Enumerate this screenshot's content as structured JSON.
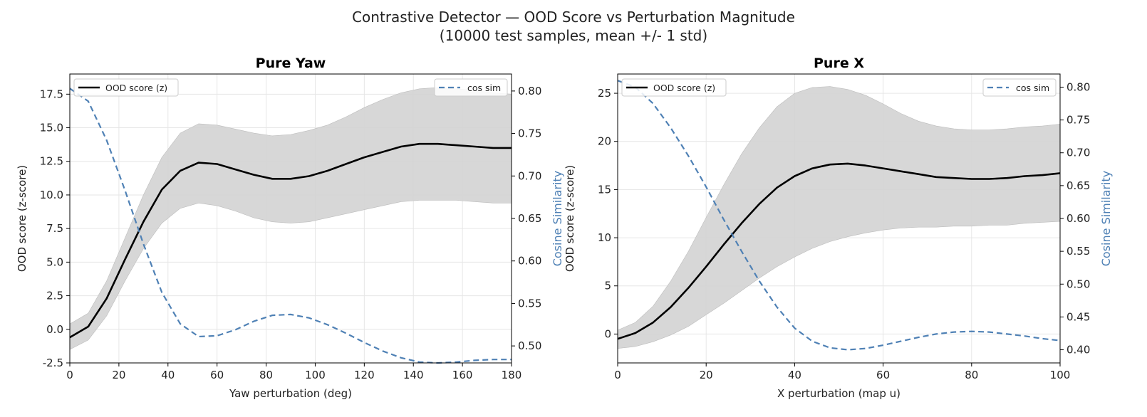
{
  "figure": {
    "title_line1": "Contrastive Detector — OOD Score vs Perturbation Magnitude",
    "title_line2": "(10000 test samples, mean +/- 1 std)"
  },
  "colors": {
    "mean": "#000000",
    "band": "#d3d3d3",
    "cos": "#4f81b5",
    "grid": "#e6e6e6"
  },
  "chart_data": [
    {
      "type": "line",
      "title": "Pure Yaw",
      "xlabel": "Yaw perturbation (deg)",
      "ylabel": "OOD score (z-score)",
      "y2label": "Cosine Similarity",
      "xlim": [
        0,
        180
      ],
      "ylim": [
        -2.5,
        19
      ],
      "y2lim": [
        0.48,
        0.82
      ],
      "xticks": [
        0,
        20,
        40,
        60,
        80,
        100,
        120,
        140,
        160,
        180
      ],
      "yticks": [
        -2.5,
        0.0,
        2.5,
        5.0,
        7.5,
        10.0,
        12.5,
        15.0,
        17.5
      ],
      "y2ticks": [
        0.5,
        0.55,
        0.6,
        0.65,
        0.7,
        0.75,
        0.8
      ],
      "grid": true,
      "legend_left": "OOD score (z)",
      "legend_right": "cos sim",
      "x": [
        0,
        7.5,
        15,
        22.5,
        30,
        37.5,
        45,
        52.5,
        60,
        67.5,
        75,
        82.5,
        90,
        97.5,
        105,
        112.5,
        120,
        127.5,
        135,
        142.5,
        150,
        157.5,
        165,
        172.5,
        180
      ],
      "series": [
        {
          "role": "mean",
          "values": [
            -0.6,
            0.2,
            2.3,
            5.2,
            8.0,
            10.4,
            11.8,
            12.4,
            12.3,
            11.9,
            11.5,
            11.2,
            11.2,
            11.4,
            11.8,
            12.3,
            12.8,
            13.2,
            13.6,
            13.8,
            13.8,
            13.7,
            13.6,
            13.5,
            13.5
          ]
        },
        {
          "role": "band_upper",
          "values": [
            0.4,
            1.2,
            3.6,
            6.8,
            10.0,
            12.8,
            14.6,
            15.3,
            15.2,
            14.9,
            14.6,
            14.4,
            14.5,
            14.8,
            15.2,
            15.8,
            16.5,
            17.1,
            17.6,
            17.9,
            18.0,
            17.9,
            17.8,
            17.6,
            17.5
          ]
        },
        {
          "role": "band_lower",
          "values": [
            -1.5,
            -0.8,
            1.0,
            3.6,
            6.0,
            7.9,
            9.0,
            9.4,
            9.2,
            8.8,
            8.3,
            8.0,
            7.9,
            8.0,
            8.3,
            8.6,
            8.9,
            9.2,
            9.5,
            9.6,
            9.6,
            9.6,
            9.5,
            9.4,
            9.4
          ]
        },
        {
          "role": "cos",
          "axis": "right",
          "values": [
            0.803,
            0.788,
            0.742,
            0.683,
            0.62,
            0.563,
            0.526,
            0.511,
            0.512,
            0.519,
            0.529,
            0.536,
            0.537,
            0.533,
            0.525,
            0.515,
            0.504,
            0.494,
            0.486,
            0.481,
            0.48,
            0.481,
            0.483,
            0.484,
            0.484
          ]
        }
      ]
    },
    {
      "type": "line",
      "title": "Pure X",
      "xlabel": "X perturbation (map u)",
      "ylabel": "OOD score (z-score)",
      "y2label": "Cosine Similarity",
      "xlim": [
        0,
        100
      ],
      "ylim": [
        -3,
        27
      ],
      "y2lim": [
        0.38,
        0.82
      ],
      "xticks": [
        0,
        20,
        40,
        60,
        80,
        100
      ],
      "yticks": [
        0,
        5,
        10,
        15,
        20,
        25
      ],
      "y2ticks": [
        0.4,
        0.45,
        0.5,
        0.55,
        0.6,
        0.65,
        0.7,
        0.75,
        0.8
      ],
      "grid": true,
      "legend_left": "OOD score (z)",
      "legend_right": "cos sim",
      "x": [
        0,
        4,
        8,
        12,
        16,
        20,
        24,
        28,
        32,
        36,
        40,
        44,
        48,
        52,
        56,
        60,
        64,
        68,
        72,
        76,
        80,
        84,
        88,
        92,
        96,
        100
      ],
      "series": [
        {
          "role": "mean",
          "values": [
            -0.5,
            0.1,
            1.2,
            2.8,
            4.8,
            7.0,
            9.3,
            11.5,
            13.5,
            15.2,
            16.4,
            17.2,
            17.6,
            17.7,
            17.5,
            17.2,
            16.9,
            16.6,
            16.3,
            16.2,
            16.1,
            16.1,
            16.2,
            16.4,
            16.5,
            16.7
          ]
        },
        {
          "role": "band_upper",
          "values": [
            0.4,
            1.2,
            2.9,
            5.5,
            8.6,
            12.1,
            15.5,
            18.7,
            21.4,
            23.6,
            25.0,
            25.6,
            25.7,
            25.4,
            24.8,
            23.9,
            22.9,
            22.1,
            21.6,
            21.3,
            21.2,
            21.2,
            21.3,
            21.5,
            21.6,
            21.8
          ]
        },
        {
          "role": "band_lower",
          "values": [
            -1.5,
            -1.3,
            -0.8,
            -0.1,
            0.8,
            2.0,
            3.2,
            4.5,
            5.8,
            7.0,
            8.0,
            8.9,
            9.6,
            10.1,
            10.5,
            10.8,
            11.0,
            11.1,
            11.1,
            11.2,
            11.2,
            11.3,
            11.3,
            11.5,
            11.6,
            11.7
          ]
        },
        {
          "role": "cos",
          "axis": "right",
          "values": [
            0.81,
            0.8,
            0.775,
            0.738,
            0.695,
            0.648,
            0.598,
            0.55,
            0.505,
            0.465,
            0.433,
            0.413,
            0.403,
            0.4,
            0.402,
            0.407,
            0.413,
            0.419,
            0.424,
            0.427,
            0.428,
            0.427,
            0.424,
            0.421,
            0.417,
            0.414
          ]
        }
      ]
    }
  ]
}
